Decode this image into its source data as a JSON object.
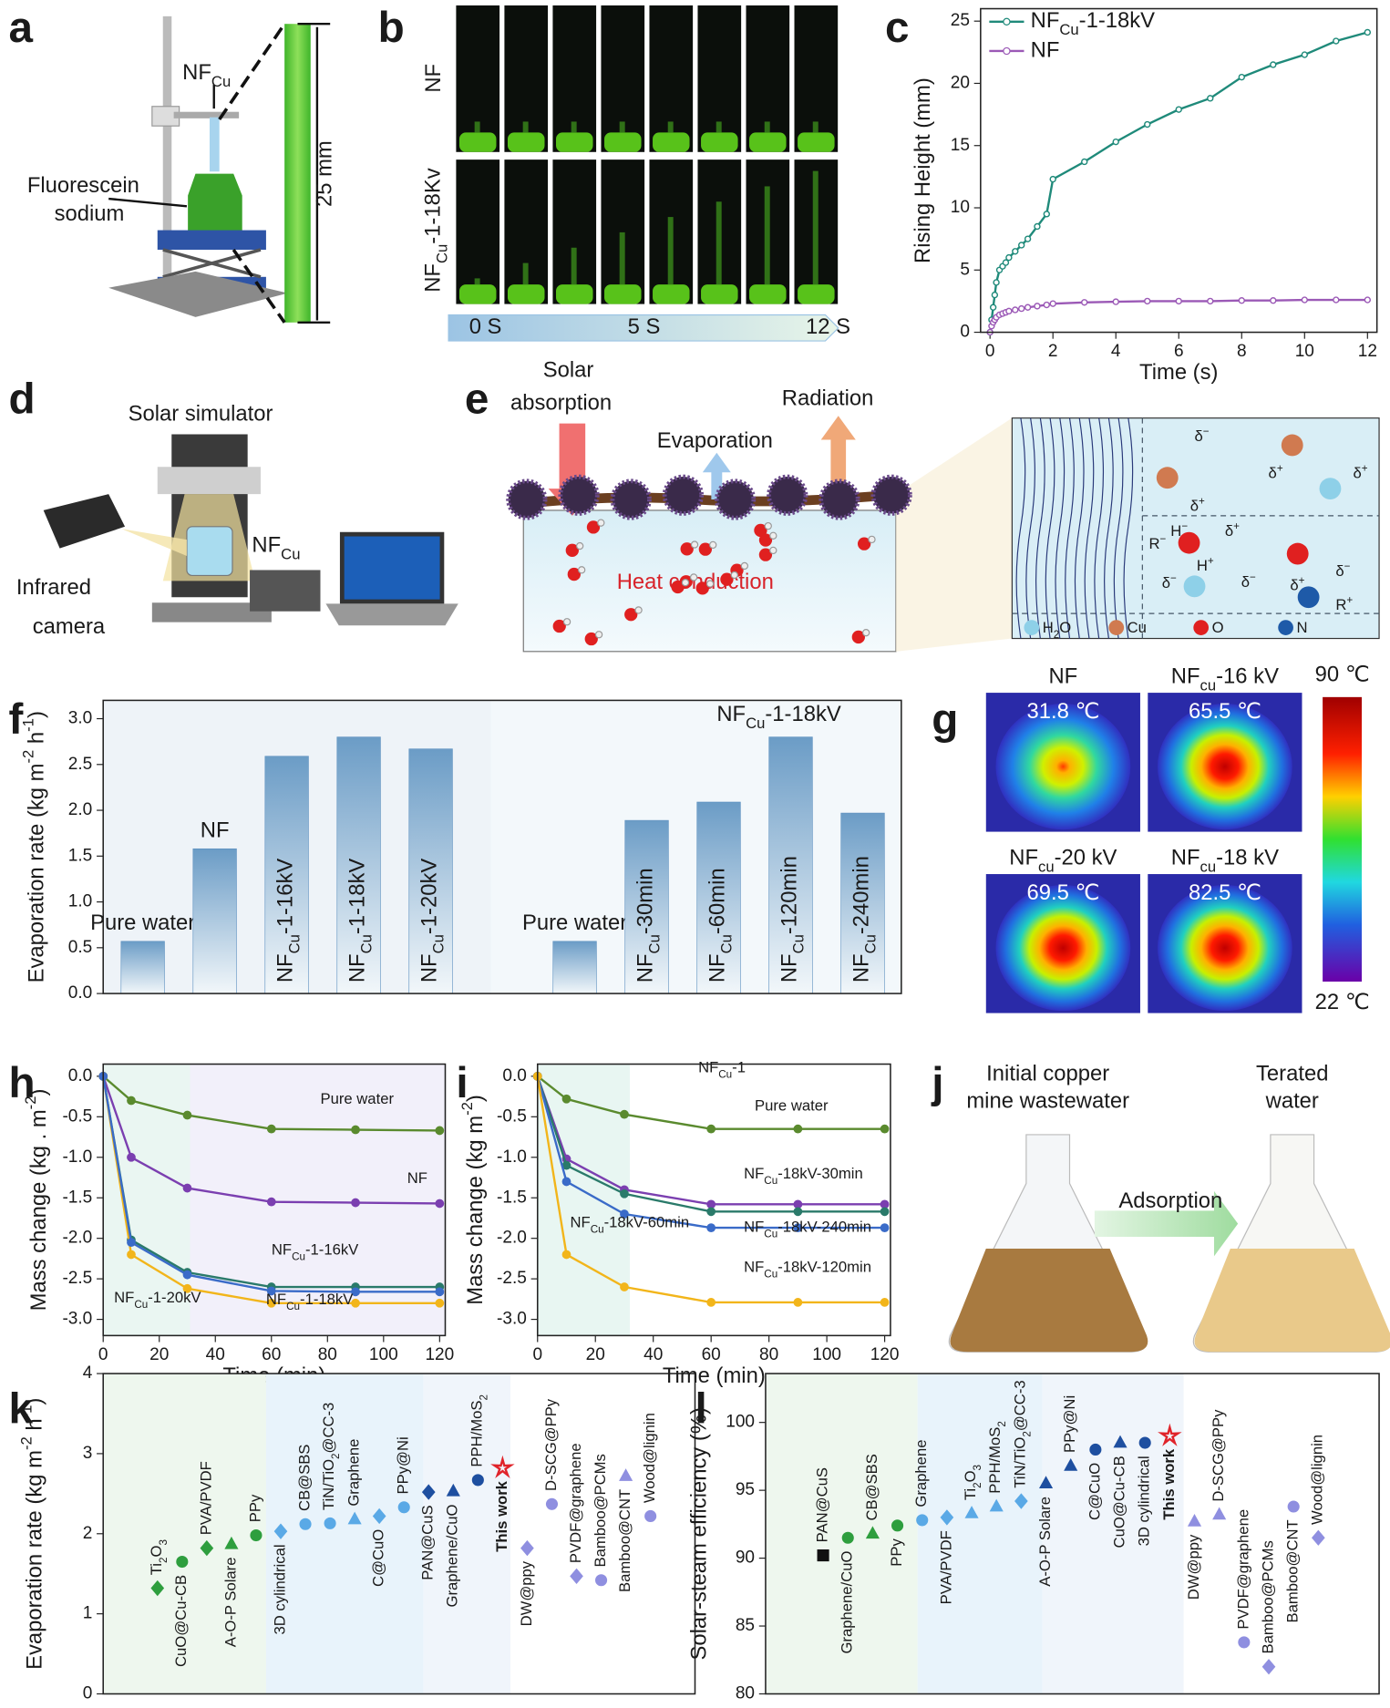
{
  "letters": [
    "a",
    "b",
    "c",
    "d",
    "e",
    "f",
    "g",
    "h",
    "i",
    "j",
    "k",
    "l"
  ],
  "a": {
    "label": [
      "NF",
      {
        "sub": "Cu"
      }
    ],
    "dye1": "Fluorescein",
    "dye2": "sodium",
    "scale": "25 mm"
  },
  "b": {
    "row1": "NF",
    "row2": [
      "NF",
      {
        "sub": "Cu"
      },
      "-1-18Kv"
    ],
    "times": [
      "0 S",
      "5 S",
      "12 S"
    ]
  },
  "d": {
    "sim": "Solar simulator",
    "nf": [
      "NF",
      {
        "sub": "Cu"
      }
    ],
    "cam1": "Infrared",
    "cam2": "camera"
  },
  "e": {
    "solar1": "Solar",
    "solar2": "absorption",
    "evap": "Evaporation",
    "rad": "Radiation",
    "heat": "Heat conduction",
    "zoom": [
      [
        "δ",
        {
          "sup": "−"
        }
      ],
      [
        "δ",
        {
          "sup": "+"
        }
      ],
      [
        "δ",
        {
          "sup": "+"
        }
      ],
      [
        "δ",
        {
          "sup": "+"
        }
      ],
      [
        "H",
        {
          "sup": "−"
        }
      ],
      [
        "δ",
        {
          "sup": "+"
        }
      ],
      [
        "R",
        {
          "sup": "−"
        }
      ],
      [
        "H",
        {
          "sup": "+"
        }
      ],
      [
        "δ",
        {
          "sup": "−"
        }
      ],
      [
        "δ",
        {
          "sup": "−"
        }
      ],
      [
        "δ",
        {
          "sup": "+"
        }
      ],
      [
        "δ",
        {
          "sup": "−"
        }
      ],
      [
        "R",
        {
          "sup": "+"
        }
      ]
    ],
    "legend": [
      [
        "H",
        {
          "sub": "2"
        },
        "O"
      ],
      "Cu",
      "O",
      "N"
    ]
  },
  "g": {
    "titles": [
      "NF",
      [
        "NF",
        {
          "sub": "cu"
        },
        "-16 kV"
      ],
      [
        "NF",
        {
          "sub": "cu"
        },
        "-20 kV"
      ],
      [
        "NF",
        {
          "sub": "cu"
        },
        "-18 kV"
      ]
    ],
    "temps": [
      "31.8 ℃",
      "65.5 ℃",
      "69.5 ℃",
      "82.5 ℃"
    ],
    "cbar_max": "90 ℃",
    "cbar_min": "22 ℃"
  },
  "j": {
    "left1": "Initial copper",
    "left2": "mine wastewater",
    "right1": "Terated",
    "right2": "water",
    "arrow": "Adsorption"
  },
  "chart_data": [
    {
      "type": "line",
      "xlabel": "Time (s)",
      "ylabel": "Rising Height (mm)",
      "x": [
        0,
        0.05,
        0.1,
        0.15,
        0.2,
        0.3,
        0.4,
        0.5,
        0.6,
        0.8,
        1,
        1.2,
        1.5,
        1.8,
        2,
        3,
        4,
        5,
        6,
        7,
        8,
        9,
        10,
        11,
        12
      ],
      "series": [
        {
          "name": [
            "NF",
            {
              "sub": "Cu"
            },
            "-1-18kV"
          ],
          "color": "#1f8a7a",
          "values": [
            0,
            1,
            2,
            3,
            4,
            5,
            5.3,
            5.6,
            6,
            6.5,
            7,
            7.5,
            8.5,
            9.5,
            12.3,
            13.7,
            15.3,
            16.7,
            17.9,
            18.8,
            20.5,
            21.5,
            22.3,
            23.4,
            24.1
          ]
        },
        {
          "name": "NF",
          "color": "#9b59b6",
          "values": [
            0,
            0.5,
            0.8,
            1,
            1.2,
            1.4,
            1.5,
            1.6,
            1.7,
            1.8,
            1.9,
            2,
            2.1,
            2.2,
            2.3,
            2.4,
            2.45,
            2.5,
            2.5,
            2.5,
            2.55,
            2.55,
            2.6,
            2.6,
            2.6
          ]
        }
      ],
      "xlim": [
        -0.3,
        12.3
      ],
      "ylim": [
        0,
        26
      ],
      "xticks": [
        0,
        2,
        4,
        6,
        8,
        10,
        12
      ],
      "yticks": [
        0,
        5,
        10,
        15,
        20,
        25
      ],
      "legend": "upper left"
    },
    {
      "type": "bar",
      "ylabel": [
        "Evaporation rate (kg m",
        {
          "sup": "-2"
        },
        " h",
        {
          "sup": "-1"
        },
        ")"
      ],
      "annotation": [
        "NF",
        {
          "sub": "Cu"
        },
        "-1-18kV"
      ],
      "categories": [
        "Pure water",
        "NF",
        [
          "NF",
          {
            "sub": "Cu"
          },
          "-1-16kV"
        ],
        [
          "NF",
          {
            "sub": "Cu"
          },
          "-1-18kV"
        ],
        [
          "NF",
          {
            "sub": "Cu"
          },
          "-1-20kV"
        ],
        "Pure water",
        [
          "NF",
          {
            "sub": "Cu"
          },
          "-30min"
        ],
        [
          "NF",
          {
            "sub": "Cu"
          },
          "-60min"
        ],
        [
          "NF",
          {
            "sub": "Cu"
          },
          "-120min"
        ],
        [
          "NF",
          {
            "sub": "Cu"
          },
          "-240min"
        ]
      ],
      "values": [
        0.57,
        1.58,
        2.59,
        2.8,
        2.67,
        0.57,
        1.89,
        2.09,
        2.8,
        1.97
      ],
      "color": "#5b8fbf",
      "ylim": [
        0,
        3.2
      ],
      "yticks": [
        {
          "value": 0,
          "label": "0.0"
        },
        0.5,
        {
          "value": 1,
          "label": "1.0"
        },
        1.5,
        {
          "value": 2,
          "label": "2.0"
        },
        2.5,
        {
          "value": 3,
          "label": "3.0"
        }
      ]
    },
    {
      "type": "line",
      "xlabel": "Time (min)",
      "ylabel": [
        "Mass change (kg . m",
        {
          "sup": "-2"
        },
        ")"
      ],
      "x": [
        0,
        10,
        30,
        60,
        90,
        120
      ],
      "series": [
        {
          "name": "Pure water",
          "color": "#5a8a2e",
          "values": [
            0,
            -0.3,
            -0.48,
            -0.65,
            -0.66,
            -0.67
          ]
        },
        {
          "name": "NF",
          "color": "#7b3fb0",
          "values": [
            0,
            -1,
            -1.38,
            -1.55,
            -1.56,
            -1.57
          ]
        },
        {
          "name": [
            "NF",
            {
              "sub": "Cu"
            },
            "-1-16kV"
          ],
          "color": "#2a7a6a",
          "values": [
            0,
            -2.02,
            -2.42,
            -2.6,
            -2.6,
            -2.6
          ]
        },
        {
          "name": [
            "NF",
            {
              "sub": "Cu"
            },
            "-1-18kV"
          ],
          "color": "#f2b51a",
          "values": [
            0,
            -2.2,
            -2.62,
            -2.8,
            -2.8,
            -2.8
          ]
        },
        {
          "name": [
            "NF",
            {
              "sub": "Cu"
            },
            "-1-20kV"
          ],
          "color": "#3a6bc8",
          "values": [
            0,
            -2.05,
            -2.45,
            -2.65,
            -2.66,
            -2.66
          ]
        }
      ],
      "xlim": [
        0,
        122
      ],
      "ylim": [
        -3.2,
        0.15
      ],
      "xticks": [
        0,
        20,
        40,
        60,
        80,
        100,
        120
      ],
      "yticks": [
        {
          "value": -3,
          "label": "-3.0"
        },
        -2.5,
        {
          "value": -2,
          "label": "-2.0"
        },
        -1.5,
        {
          "value": -1,
          "label": "-1.0"
        },
        -0.5,
        {
          "value": 0,
          "label": "0.0"
        }
      ]
    },
    {
      "type": "line",
      "xlabel": "Time (min)",
      "ylabel": [
        "Mass change (kg m",
        {
          "sup": "-2"
        },
        ")"
      ],
      "annotation": [
        "NF",
        {
          "sub": "Cu"
        },
        "-1"
      ],
      "x": [
        0,
        10,
        30,
        60,
        90,
        120
      ],
      "series": [
        {
          "name": "Pure water",
          "color": "#5a8a2e",
          "values": [
            0,
            -0.28,
            -0.47,
            -0.65,
            -0.65,
            -0.65
          ]
        },
        {
          "name": [
            "NF",
            {
              "sub": "Cu"
            },
            "-18kV-30min"
          ],
          "color": "#7b3fb0",
          "values": [
            0,
            -1.02,
            -1.4,
            -1.58,
            -1.58,
            -1.58
          ]
        },
        {
          "name": [
            "NF",
            {
              "sub": "Cu"
            },
            "-18kV-60min"
          ],
          "color": "#2a7a6a",
          "values": [
            0,
            -1.1,
            -1.45,
            -1.67,
            -1.67,
            -1.67
          ]
        },
        {
          "name": [
            "NF",
            {
              "sub": "Cu"
            },
            "-18kV-240min"
          ],
          "color": "#3a6bc8",
          "values": [
            0,
            -1.3,
            -1.7,
            -1.87,
            -1.87,
            -1.87
          ]
        },
        {
          "name": [
            "NF",
            {
              "sub": "Cu"
            },
            "-18kV-120min"
          ],
          "color": "#f2b51a",
          "values": [
            0,
            -2.2,
            -2.6,
            -2.79,
            -2.79,
            -2.79
          ]
        }
      ],
      "xlim": [
        0,
        122
      ],
      "ylim": [
        -3.2,
        0.15
      ],
      "xticks": [
        0,
        20,
        40,
        60,
        80,
        100,
        120
      ],
      "yticks": [
        {
          "value": -3,
          "label": "-3.0"
        },
        -2.5,
        {
          "value": -2,
          "label": "-2.0"
        },
        -1.5,
        {
          "value": -1,
          "label": "-1.0"
        },
        -0.5,
        {
          "value": 0,
          "label": "0.0"
        }
      ]
    },
    {
      "type": "scatter",
      "ylabel": [
        "Evaporation rate (kg m",
        {
          "sup": "-2"
        },
        " h",
        {
          "sup": "-1"
        },
        ")"
      ],
      "categories": [
        [
          "Ti",
          {
            "sub": "2"
          },
          "O",
          {
            "sub": "3"
          }
        ],
        "CuO@Cu-CB",
        "PVA/PVDF",
        "A-O-P Solare",
        "PPy",
        "3D cylindrical",
        "CB@SBS",
        [
          "TiN/TiO",
          {
            "sub": "2"
          },
          "@CC-3"
        ],
        "Graphene",
        "C@CuO",
        "PPy@Ni",
        "PAN@CuS",
        "Graphene/CuO",
        [
          "PPH/MoS",
          {
            "sub": "2"
          }
        ],
        "This work",
        "DW@ppy",
        "D-SCG@PPy",
        "PVDF@graphene",
        "Bamboo@PCMs",
        "Bamboo@CNT",
        "Wood@lignin"
      ],
      "values": [
        1.32,
        1.65,
        1.82,
        1.87,
        1.98,
        2.03,
        2.12,
        2.13,
        2.18,
        2.22,
        2.33,
        2.52,
        2.53,
        2.67,
        2.82,
        1.82,
        2.37,
        1.47,
        1.42,
        2.72,
        2.22
      ],
      "colors": [
        "#2e9e3e",
        "#2e9e3e",
        "#2e9e3e",
        "#2e9e3e",
        "#2e9e3e",
        "#5aa9e6",
        "#5aa9e6",
        "#5aa9e6",
        "#5aa9e6",
        "#5aa9e6",
        "#5aa9e6",
        "#1e4fa0",
        "#1e4fa0",
        "#1e4fa0",
        "#e0232a",
        "#8f8fe0",
        "#8f8fe0",
        "#8f8fe0",
        "#8f8fe0",
        "#8f8fe0",
        "#8f8fe0"
      ],
      "markers": [
        "diamond",
        "circle",
        "diamond",
        "triangle",
        "circle",
        "diamond",
        "circle",
        "circle",
        "triangle",
        "diamond",
        "circle",
        "diamond",
        "triangle",
        "circle",
        "star",
        "diamond",
        "circle",
        "diamond",
        "circle",
        "triangle",
        "circle"
      ],
      "ylim": [
        0,
        4
      ],
      "yticks": [
        0,
        1,
        2,
        3,
        4
      ]
    },
    {
      "type": "scatter",
      "ylabel": "Solar-steam efficiency (%)",
      "categories": [
        "PAN@CuS",
        "Graphene/CuO",
        "CB@SBS",
        "PPy",
        "Graphene",
        "PVA/PVDF",
        [
          "Ti",
          {
            "sub": "2"
          },
          "O",
          {
            "sub": "3"
          }
        ],
        [
          "PPH/MoS",
          {
            "sub": "2"
          }
        ],
        [
          "TiN/TiO",
          {
            "sub": "2"
          },
          "@CC-3"
        ],
        "A-O-P Solare",
        "PPy@Ni",
        "C@CuO",
        "CuO@Cu-CB",
        "3D cylindrical",
        "This work",
        "DW@ppy",
        "D-SCG@PPy",
        "PVDF@graphene",
        "Bamboo@PCMs",
        "Bamboo@CNT",
        "Wood@lignin"
      ],
      "values": [
        90.2,
        91.5,
        91.8,
        92.4,
        92.8,
        93.0,
        93.3,
        93.8,
        94.2,
        95.5,
        96.8,
        98.0,
        98.5,
        98.5,
        99.0,
        92.7,
        93.2,
        83.8,
        82.0,
        93.8,
        91.5
      ],
      "colors": [
        "#111111",
        "#2e9e3e",
        "#2e9e3e",
        "#2e9e3e",
        "#5aa9e6",
        "#5aa9e6",
        "#5aa9e6",
        "#5aa9e6",
        "#5aa9e6",
        "#1e4fa0",
        "#1e4fa0",
        "#1e4fa0",
        "#1e4fa0",
        "#1e4fa0",
        "#e0232a",
        "#8f8fe0",
        "#8f8fe0",
        "#8f8fe0",
        "#8f8fe0",
        "#8f8fe0",
        "#8f8fe0"
      ],
      "markers": [
        "square",
        "circle",
        "triangle",
        "circle",
        "circle",
        "diamond",
        "triangle",
        "triangle",
        "diamond",
        "triangle",
        "triangle",
        "circle",
        "triangle",
        "circle",
        "star",
        "triangle",
        "triangle",
        "circle",
        "diamond",
        "circle",
        "diamond"
      ],
      "ylim": [
        80,
        103.6
      ],
      "yticks": [
        80,
        85,
        90,
        95,
        100
      ]
    }
  ]
}
